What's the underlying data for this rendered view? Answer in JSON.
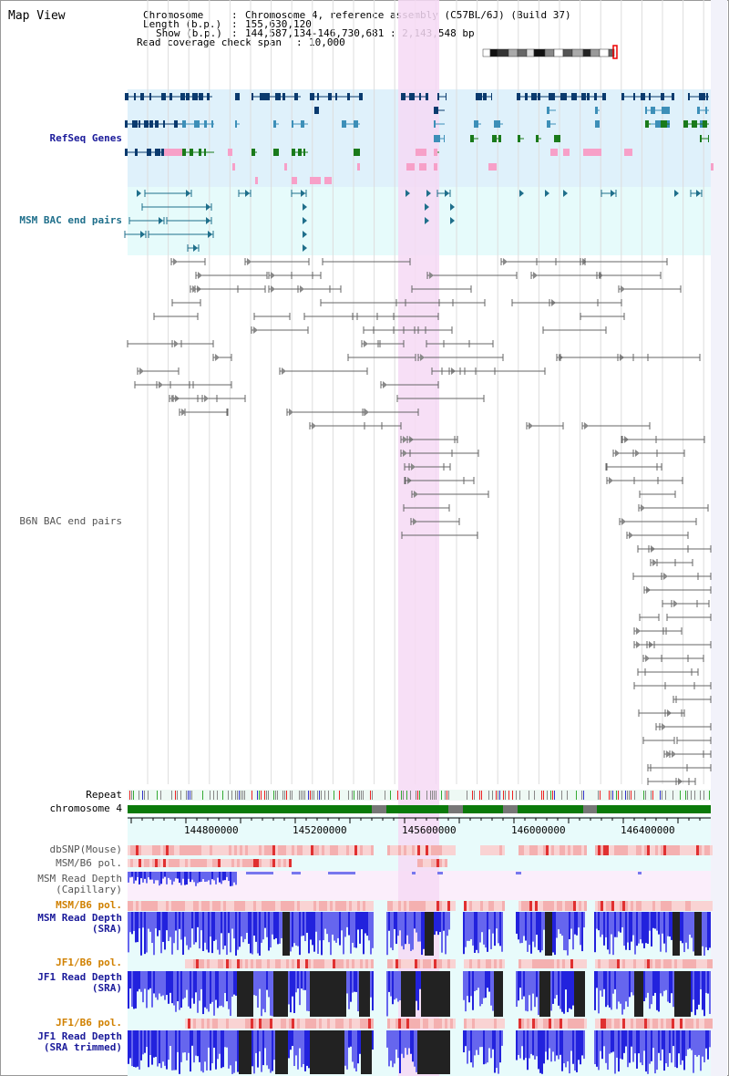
{
  "title": "Map View",
  "info": {
    "chromosome_label": "Chromosome",
    "chromosome_value": "Chromosome 4, reference assembly (C57BL/6J) (Build 37)",
    "length_label": "Length (b.p.)",
    "length_value": "155,630,120",
    "show_label": "Show (b.p.)",
    "show_value": "144,587,134-146,730,681 : 2,143,548 bp",
    "coverage_label": "Read coverage check span",
    "coverage_value": "10,000"
  },
  "tracks": {
    "refseq": "RefSeq Genes",
    "msm_bac": "MSM BAC end pairs",
    "b6n_bac": "B6N BAC end pairs",
    "repeat": "Repeat",
    "chromosome": "chromosome 4",
    "dbsnp": "dbSNP(Mouse)",
    "msm_b6_pol_1": "MSM/B6 pol.",
    "msm_depth_cap_1": "MSM Read Depth",
    "msm_depth_cap_2": "(Capillary)",
    "msm_b6_pol_2": "MSM/B6 pol.",
    "msm_depth_sra_1": "MSM Read Depth",
    "msm_depth_sra_2": "(SRA)",
    "jf1_pol_1": "JF1/B6 pol.",
    "jf1_depth_1": "JF1 Read Depth",
    "jf1_depth_2": "(SRA)",
    "jf1_pol_2": "JF1/B6 pol.",
    "jf1_depth_trim_1": "JF1 Read Depth",
    "jf1_depth_trim_2": "(SRA trimmed)"
  },
  "axis": {
    "ticks": [
      "144800000",
      "145200000",
      "145600000",
      "146000000",
      "146400000"
    ]
  },
  "colors": {
    "refseq_bg": "#dff1fb",
    "msm_bg": "#e6fbfb",
    "highlight": "#f6d9f4",
    "refseq_dark": "#0a3a6e",
    "refseq_mid": "#3d8fb8",
    "refseq_green": "#1a7a1a",
    "refseq_pink": "#f7a0c8",
    "msm_bac": "#1f6f8b",
    "b6n_bac": "#666666",
    "chrom_green": "#0a7a0a",
    "depth_blue": "#3333ee",
    "pol_red": "#f0a0a0"
  }
}
